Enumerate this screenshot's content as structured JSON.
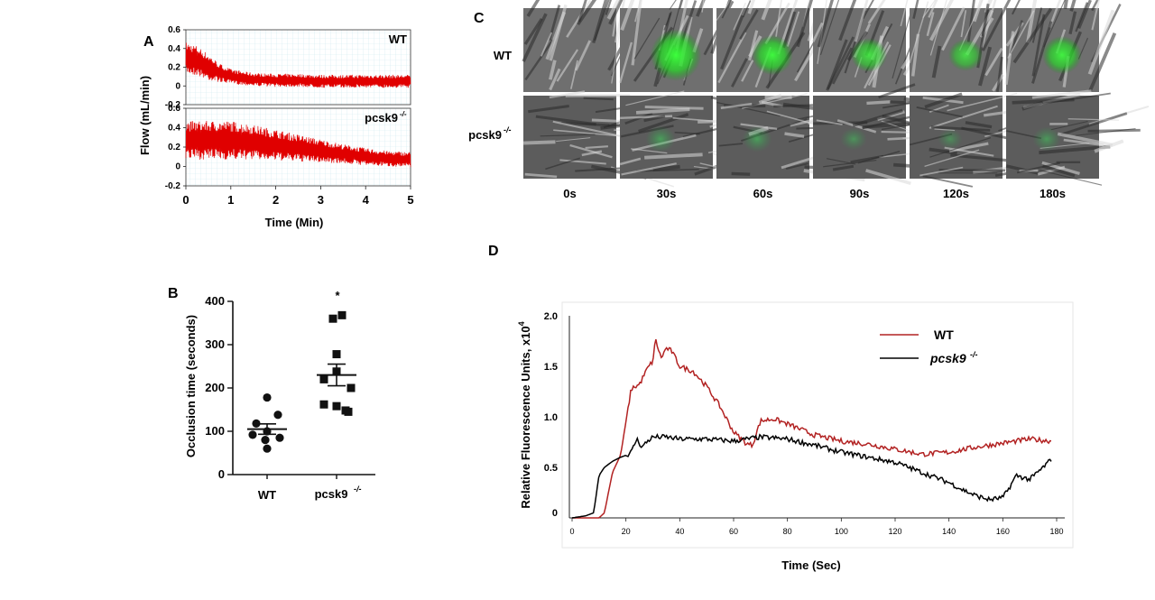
{
  "panel_a": {
    "letter": "A",
    "ylabel": "Flow (mL/min)",
    "xlabel": "Time (Min)",
    "y_ticks": [
      "0.6",
      "0.4",
      "0.2",
      "0",
      "-0.2"
    ],
    "x_ticks": [
      "0",
      "1",
      "2",
      "3",
      "4",
      "5"
    ],
    "top_label": "WT",
    "bottom_label_main": "pcsk9",
    "bottom_label_sup": "-/-",
    "trace_color": "#e00000"
  },
  "panel_b": {
    "letter": "B",
    "ylabel": "Occlusion time (seconds)",
    "sig_mark": "*",
    "cat1": "WT",
    "cat2_main": "pcsk9",
    "cat2_sup": "-/-"
  },
  "panel_c": {
    "letter": "C",
    "row1": "WT",
    "row2_main": "pcsk9",
    "row2_sup": "-/-",
    "times": [
      "0s",
      "30s",
      "60s",
      "90s",
      "120s",
      "180s"
    ],
    "wt_green": [
      0.0,
      0.9,
      0.6,
      0.45,
      0.4,
      0.55
    ],
    "ko_green": [
      0.0,
      0.25,
      0.25,
      0.15,
      0.1,
      0.2
    ]
  },
  "panel_d": {
    "letter": "D",
    "ylabel_main": "Relative Fluorescence Units, x10",
    "ylabel_sup": "4",
    "xlabel": "Time (Sec)",
    "legend_wt": "WT",
    "legend_ko_main": "pcsk9",
    "legend_ko_sup": "-/-",
    "wt_color": "#b22222",
    "ko_color": "#000000"
  },
  "chart_data": [
    {
      "type": "line",
      "panel": "A",
      "xlabel": "Time (Min)",
      "ylabel": "Flow (mL/min)",
      "xlim": [
        0,
        5
      ],
      "ylim": [
        -0.2,
        0.6
      ],
      "series": [
        {
          "name": "WT",
          "x": [
            0,
            0.25,
            0.5,
            0.75,
            1,
            1.5,
            2,
            2.5,
            3,
            3.5,
            4,
            4.5,
            5
          ],
          "mean": [
            0.3,
            0.27,
            0.2,
            0.14,
            0.1,
            0.07,
            0.06,
            0.06,
            0.05,
            0.05,
            0.05,
            0.05,
            0.05
          ],
          "amplitude": [
            0.17,
            0.16,
            0.14,
            0.1,
            0.08,
            0.07,
            0.07,
            0.07,
            0.07,
            0.07,
            0.07,
            0.07,
            0.07
          ]
        },
        {
          "name": "pcsk9-/-",
          "x": [
            0,
            0.5,
            1,
            1.5,
            2,
            2.5,
            3,
            3.5,
            4,
            4.5,
            5
          ],
          "mean": [
            0.27,
            0.27,
            0.27,
            0.25,
            0.22,
            0.19,
            0.16,
            0.13,
            0.1,
            0.08,
            0.07
          ],
          "amplitude": [
            0.2,
            0.2,
            0.2,
            0.18,
            0.16,
            0.14,
            0.12,
            0.1,
            0.09,
            0.08,
            0.08
          ]
        }
      ]
    },
    {
      "type": "scatter",
      "panel": "B",
      "ylabel": "Occlusion time (seconds)",
      "categories": [
        "WT",
        "pcsk9-/-"
      ],
      "ylim": [
        0,
        400
      ],
      "y_ticks": [
        0,
        100,
        200,
        300,
        400
      ],
      "series": [
        {
          "name": "WT",
          "values": [
            178,
            138,
            118,
            100,
            92,
            85,
            80,
            60
          ],
          "mean": 105,
          "sem": 12
        },
        {
          "name": "pcsk9-/-",
          "values": [
            368,
            360,
            278,
            238,
            220,
            200,
            162,
            158,
            145,
            148
          ],
          "mean": 230,
          "sem": 25
        }
      ]
    },
    {
      "type": "line",
      "panel": "D",
      "xlabel": "Time (Sec)",
      "ylabel": "Relative Fluorescence Units, x10^4",
      "xlim": [
        0,
        180
      ],
      "ylim": [
        0,
        2.0
      ],
      "x_ticks": [
        0,
        20,
        40,
        60,
        80,
        100,
        120,
        140,
        160,
        180
      ],
      "y_ticks": [
        "0",
        "0.5",
        "1.0",
        "1.5",
        "2.0"
      ],
      "series": [
        {
          "name": "WT",
          "x": [
            0,
            10,
            12,
            15,
            18,
            20,
            22,
            25,
            28,
            30,
            31,
            33,
            35,
            37,
            40,
            45,
            50,
            55,
            60,
            65,
            67,
            68,
            70,
            75,
            80,
            90,
            100,
            110,
            120,
            130,
            140,
            150,
            160,
            170,
            178
          ],
          "y": [
            0,
            0,
            0.05,
            0.45,
            0.62,
            0.95,
            1.28,
            1.32,
            1.48,
            1.55,
            1.77,
            1.58,
            1.68,
            1.65,
            1.5,
            1.45,
            1.3,
            1.1,
            0.85,
            0.73,
            0.72,
            0.8,
            0.96,
            0.98,
            0.93,
            0.82,
            0.76,
            0.73,
            0.68,
            0.63,
            0.65,
            0.7,
            0.74,
            0.78,
            0.76
          ]
        },
        {
          "name": "pcsk9-/-",
          "x": [
            0,
            5,
            8,
            10,
            12,
            15,
            18,
            20,
            22,
            24,
            26,
            28,
            30,
            35,
            40,
            50,
            60,
            70,
            80,
            90,
            100,
            110,
            120,
            130,
            140,
            145,
            150,
            155,
            160,
            162,
            165,
            170,
            175,
            178
          ],
          "y": [
            0,
            0.02,
            0.05,
            0.42,
            0.5,
            0.56,
            0.6,
            0.62,
            0.65,
            0.78,
            0.7,
            0.76,
            0.8,
            0.8,
            0.78,
            0.78,
            0.76,
            0.8,
            0.78,
            0.72,
            0.65,
            0.6,
            0.55,
            0.45,
            0.35,
            0.28,
            0.22,
            0.18,
            0.2,
            0.28,
            0.42,
            0.38,
            0.5,
            0.58
          ]
        }
      ]
    }
  ]
}
